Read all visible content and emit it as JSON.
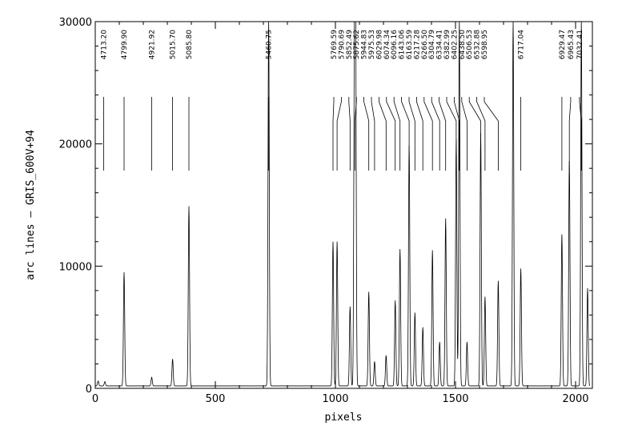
{
  "chart_data": {
    "type": "line",
    "xlabel": "pixels",
    "ylabel": "arc lines  –  GRIS_600V+94",
    "xlim": [
      0,
      2070
    ],
    "ylim": [
      0,
      30000
    ],
    "x_ticks": [
      {
        "value": 0,
        "label": "0"
      },
      {
        "value": 500,
        "label": "500"
      },
      {
        "value": 1000,
        "label": "1000"
      },
      {
        "value": 1500,
        "label": "1500"
      },
      {
        "value": 2000,
        "label": "2000"
      }
    ],
    "y_ticks": [
      {
        "value": 0,
        "label": "0"
      },
      {
        "value": 10000,
        "label": "10000"
      },
      {
        "value": 20000,
        "label": "20000"
      },
      {
        "value": 30000,
        "label": "30000"
      }
    ],
    "grid": false,
    "baseline": 200,
    "peaks": [
      {
        "x": 12,
        "height": 400
      },
      {
        "x": 40,
        "height": 350
      },
      {
        "x": 120,
        "height": 9300
      },
      {
        "x": 235,
        "height": 700
      },
      {
        "x": 322,
        "height": 2200
      },
      {
        "x": 390,
        "height": 14700
      },
      {
        "x": 722,
        "height": 30000
      },
      {
        "x": 990,
        "height": 11800
      },
      {
        "x": 1007,
        "height": 11800
      },
      {
        "x": 1061,
        "height": 6500
      },
      {
        "x": 1079,
        "height": 25500
      },
      {
        "x": 1084,
        "height": 30000
      },
      {
        "x": 1139,
        "height": 7700
      },
      {
        "x": 1163,
        "height": 2000
      },
      {
        "x": 1211,
        "height": 2500
      },
      {
        "x": 1249,
        "height": 7000
      },
      {
        "x": 1269,
        "height": 11200
      },
      {
        "x": 1307,
        "height": 19700
      },
      {
        "x": 1331,
        "height": 6000
      },
      {
        "x": 1364,
        "height": 4800
      },
      {
        "x": 1404,
        "height": 11100
      },
      {
        "x": 1434,
        "height": 3600
      },
      {
        "x": 1459,
        "height": 13700
      },
      {
        "x": 1503,
        "height": 20200
      },
      {
        "x": 1516,
        "height": 30000
      },
      {
        "x": 1548,
        "height": 3600
      },
      {
        "x": 1605,
        "height": 20700
      },
      {
        "x": 1623,
        "height": 7300
      },
      {
        "x": 1678,
        "height": 8600
      },
      {
        "x": 1740,
        "height": 30000
      },
      {
        "x": 1772,
        "height": 9600
      },
      {
        "x": 1943,
        "height": 12400
      },
      {
        "x": 1974,
        "height": 18400
      },
      {
        "x": 2024,
        "height": 30000
      },
      {
        "x": 2050,
        "height": 8000
      }
    ],
    "line_ids": [
      {
        "label": "4713.20",
        "x": 35
      },
      {
        "label": "4799.90",
        "x": 120
      },
      {
        "label": "4921.92",
        "x": 235
      },
      {
        "label": "5015.70",
        "x": 322
      },
      {
        "label": "5085.80",
        "x": 390
      },
      {
        "label": "5460.75",
        "x": 722
      },
      {
        "label": "5769.59",
        "x": 990
      },
      {
        "label": "5790.69",
        "x": 1007
      },
      {
        "label": "5852.49",
        "x": 1061
      },
      {
        "label": "5875.62",
        "x": 1081
      },
      {
        "label": "5944.83",
        "x": 1139
      },
      {
        "label": "5975.53",
        "x": 1163
      },
      {
        "label": "6029.98",
        "x": 1211
      },
      {
        "label": "6074.34",
        "x": 1249
      },
      {
        "label": "6096.16",
        "x": 1269
      },
      {
        "label": "6143.06",
        "x": 1307
      },
      {
        "label": "6163.59",
        "x": 1331
      },
      {
        "label": "6217.28",
        "x": 1364
      },
      {
        "label": "6266.50",
        "x": 1404
      },
      {
        "label": "6304.79",
        "x": 1434
      },
      {
        "label": "6334.41",
        "x": 1459
      },
      {
        "label": "6382.99",
        "x": 1503
      },
      {
        "label": "6402.25",
        "x": 1516
      },
      {
        "label": "6438.50",
        "x": 1548
      },
      {
        "label": "6506.53",
        "x": 1605
      },
      {
        "label": "6532.88",
        "x": 1623
      },
      {
        "label": "6598.95",
        "x": 1678
      },
      {
        "label": "6717.04",
        "x": 1772
      },
      {
        "label": "6929.47",
        "x": 1943
      },
      {
        "label": "6965.43",
        "x": 1974
      },
      {
        "label": "7032.41",
        "x": 2024
      }
    ]
  }
}
